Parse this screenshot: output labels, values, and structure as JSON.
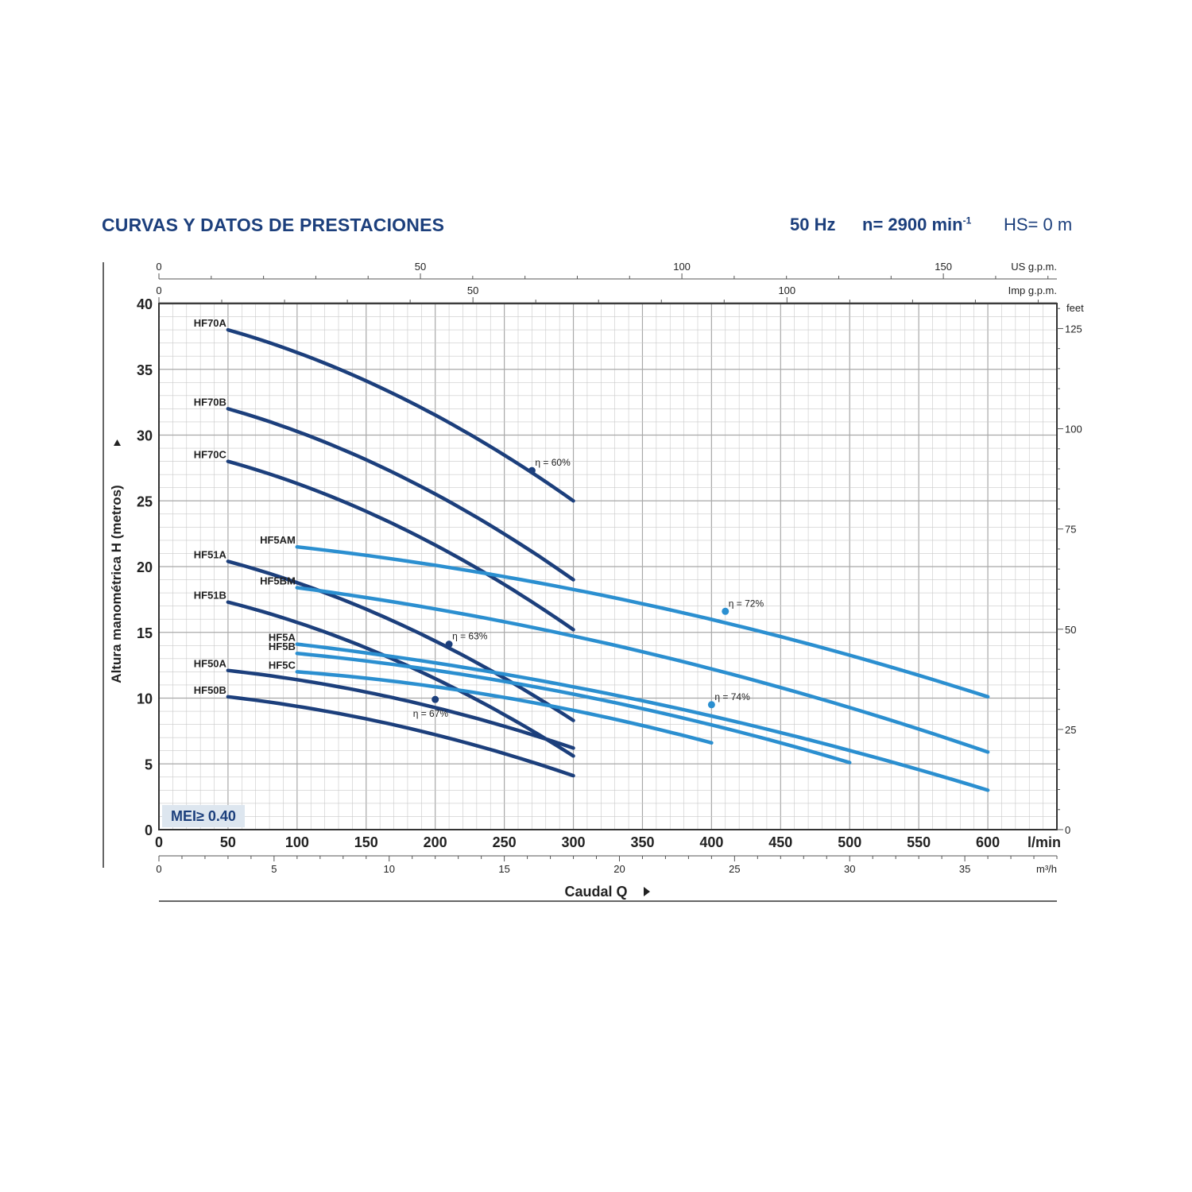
{
  "header": {
    "title": "CURVAS Y DATOS DE PRESTACIONES",
    "frequency": "50 Hz",
    "speed": "n= 2900 min",
    "speed_exp": "-1",
    "hs": "HS= 0 m"
  },
  "mei_label": "MEI≥ 0.40",
  "colors": {
    "dark": "#1c3f7c",
    "light": "#2b8fd0",
    "grid": "#c9c9c9",
    "text": "#222222"
  },
  "chart_data": {
    "type": "line",
    "xlabel": "Caudal Q",
    "ylabel": "Altura manométrica H (metros)",
    "xlim": [
      0,
      650
    ],
    "ylim": [
      0,
      40
    ],
    "grid": true,
    "x_ticks": [
      0,
      50,
      100,
      150,
      200,
      250,
      300,
      350,
      400,
      450,
      500,
      550,
      600
    ],
    "y_ticks": [
      0,
      5,
      10,
      15,
      20,
      25,
      30,
      35,
      40
    ],
    "x_unit": "l/min",
    "secondary_axes": {
      "us_gpm": {
        "unit": "US g.p.m.",
        "ticks": [
          0,
          50,
          100,
          150
        ]
      },
      "imp_gpm": {
        "unit": "Imp g.p.m.",
        "ticks": [
          0,
          50,
          100
        ]
      },
      "m3h": {
        "unit": "m³/h",
        "ticks": [
          0,
          5,
          10,
          15,
          20,
          25,
          30,
          35
        ]
      },
      "feet": {
        "unit": "feet",
        "ticks": [
          0,
          25,
          50,
          75,
          100,
          125
        ]
      }
    },
    "series": [
      {
        "name": "HF70A",
        "tone": "dark",
        "x": [
          50,
          300
        ],
        "y": [
          38,
          25
        ],
        "curvature": 5.5
      },
      {
        "name": "HF70B",
        "tone": "dark",
        "x": [
          50,
          300
        ],
        "y": [
          32,
          19
        ],
        "curvature": 5.5
      },
      {
        "name": "HF70C",
        "tone": "dark",
        "x": [
          50,
          300
        ],
        "y": [
          28,
          15.2
        ],
        "curvature": 5.5
      },
      {
        "name": "HF51A",
        "tone": "dark",
        "x": [
          50,
          300
        ],
        "y": [
          20.4,
          8.3
        ],
        "curvature": 5.0
      },
      {
        "name": "HF51B",
        "tone": "dark",
        "x": [
          50,
          300
        ],
        "y": [
          17.3,
          5.6
        ],
        "curvature": 5.0
      },
      {
        "name": "HF50A",
        "tone": "dark",
        "x": [
          50,
          300
        ],
        "y": [
          12.1,
          6.2
        ],
        "curvature": 3.0
      },
      {
        "name": "HF50B",
        "tone": "dark",
        "x": [
          50,
          300
        ],
        "y": [
          10.1,
          4.1
        ],
        "curvature": 3.0
      },
      {
        "name": "HF5AM",
        "tone": "light",
        "x": [
          100,
          600
        ],
        "y": [
          21.5,
          10.1
        ],
        "curvature": 5.5
      },
      {
        "name": "HF5BM",
        "tone": "light",
        "x": [
          100,
          600
        ],
        "y": [
          18.4,
          5.9
        ],
        "curvature": 5.5
      },
      {
        "name": "HF5A",
        "tone": "light",
        "x": [
          100,
          600
        ],
        "y": [
          14.1,
          3.0
        ],
        "curvature": 5.0
      },
      {
        "name": "HF5B",
        "tone": "light",
        "x": [
          100,
          500
        ],
        "y": [
          13.4,
          5.1
        ],
        "curvature": 4.2
      },
      {
        "name": "HF5C",
        "tone": "light",
        "x": [
          100,
          400
        ],
        "y": [
          12.0,
          6.6
        ],
        "curvature": 3.0
      }
    ],
    "annotations": [
      {
        "text": "η = 60%",
        "x": 270,
        "y": 27.3,
        "tone": "dark"
      },
      {
        "text": "η = 63%",
        "x": 210,
        "y": 14.1,
        "tone": "dark"
      },
      {
        "text": "η = 67%",
        "x": 200,
        "y": 9.9,
        "tone": "dark"
      },
      {
        "text": "η = 72%",
        "x": 410,
        "y": 16.6,
        "tone": "light"
      },
      {
        "text": "η = 74%",
        "x": 400,
        "y": 9.5,
        "tone": "light"
      }
    ]
  }
}
